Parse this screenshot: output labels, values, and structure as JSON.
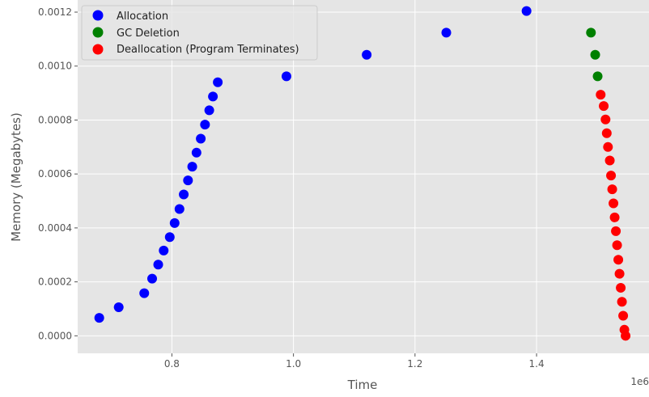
{
  "chart_data": {
    "type": "scatter",
    "xlabel": "Time",
    "ylabel": "Memory (Megabytes)",
    "x_offset_label": "1e6",
    "xlim": [
      0.645,
      1.585
    ],
    "ylim": [
      -6.5e-05,
      0.001245
    ],
    "x_ticks": [
      0.8,
      1.0,
      1.2,
      1.4
    ],
    "x_tick_labels": [
      "0.8",
      "1.0",
      "1.2",
      "1.4"
    ],
    "y_ticks": [
      0.0,
      0.0002,
      0.0004,
      0.0006,
      0.0008,
      0.001,
      0.0012
    ],
    "y_tick_labels": [
      "0.0000",
      "0.0002",
      "0.0004",
      "0.0006",
      "0.0008",
      "0.0010",
      "0.0012"
    ],
    "grid": true,
    "legend_position": "top-left",
    "series": [
      {
        "name": "Allocation",
        "color": "#0000ff",
        "points": [
          [
            0.6805,
            6.65e-05
          ],
          [
            0.7125,
            0.000106
          ],
          [
            0.7545,
            0.000158
          ],
          [
            0.7675,
            0.000212
          ],
          [
            0.7775,
            0.000264
          ],
          [
            0.7865,
            0.000316
          ],
          [
            0.7965,
            0.000366
          ],
          [
            0.8045,
            0.000418
          ],
          [
            0.8125,
            0.00047
          ],
          [
            0.8195,
            0.000524
          ],
          [
            0.8265,
            0.000576
          ],
          [
            0.8335,
            0.000627
          ],
          [
            0.8405,
            0.000679
          ],
          [
            0.8475,
            0.000731
          ],
          [
            0.8545,
            0.000783
          ],
          [
            0.8615,
            0.000836
          ],
          [
            0.8675,
            0.000887
          ],
          [
            0.8755,
            0.00094
          ],
          [
            0.9885,
            0.000962
          ],
          [
            1.1205,
            0.001042
          ],
          [
            1.2515,
            0.001124
          ],
          [
            1.3835,
            0.001204
          ]
        ]
      },
      {
        "name": "GC Deletion",
        "color": "#008000",
        "points": [
          [
            1.4895,
            0.001124
          ],
          [
            1.4965,
            0.001042
          ],
          [
            1.5005,
            0.000962
          ]
        ]
      },
      {
        "name": "Deallocation (Program Terminates)",
        "color": "#ff0000",
        "points": [
          [
            1.5055,
            0.000894
          ],
          [
            1.5105,
            0.000852
          ],
          [
            1.5135,
            0.000802
          ],
          [
            1.5155,
            0.000751
          ],
          [
            1.5175,
            0.0007
          ],
          [
            1.5205,
            0.00065
          ],
          [
            1.5225,
            0.000594
          ],
          [
            1.5245,
            0.000543
          ],
          [
            1.5265,
            0.000491
          ],
          [
            1.5285,
            0.000439
          ],
          [
            1.5305,
            0.000388
          ],
          [
            1.5325,
            0.000336
          ],
          [
            1.5345,
            0.000282
          ],
          [
            1.5365,
            0.00023
          ],
          [
            1.5385,
            0.000178
          ],
          [
            1.5405,
            0.000126
          ],
          [
            1.5425,
            7.45e-05
          ],
          [
            1.5445,
            2.25e-05
          ],
          [
            1.5465,
            0.0
          ]
        ]
      }
    ]
  }
}
